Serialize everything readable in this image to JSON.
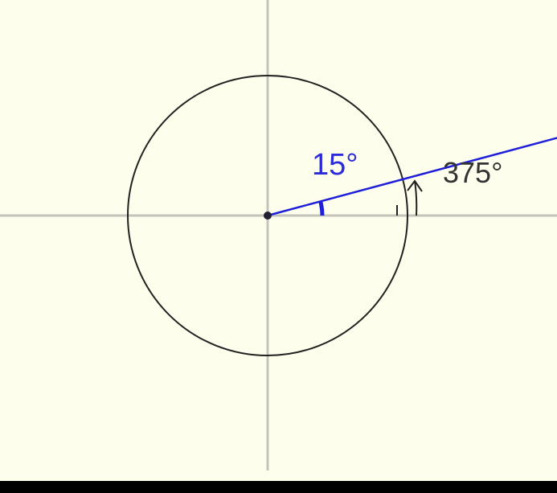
{
  "diagram": {
    "reference_angle_label": "15°",
    "coterminal_angle_label": "375°",
    "reference_angle_deg": 15,
    "coterminal_angle_deg": 375
  },
  "colors": {
    "background": "#fefeed",
    "axes": "#c4c4bc",
    "circle": "#222222",
    "ray": "#1f1fd9",
    "reference_label": "#2b2bd9",
    "coterminal_label": "#333333",
    "border": "#000000"
  }
}
